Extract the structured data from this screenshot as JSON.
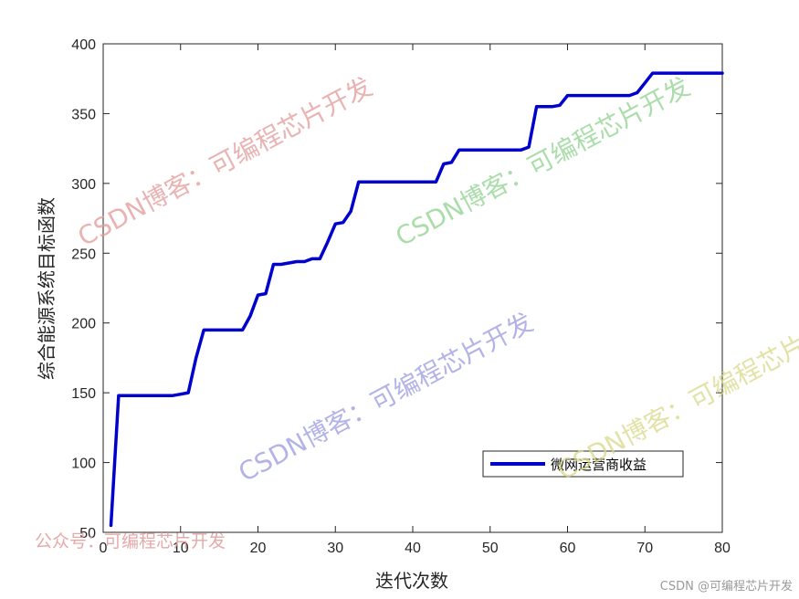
{
  "chart_data": {
    "type": "line",
    "xlabel": "迭代次数",
    "ylabel": "综合能源系统目标函数",
    "xlim": [
      0,
      80
    ],
    "ylim": [
      50,
      400
    ],
    "xticks": [
      "0",
      "10",
      "20",
      "30",
      "40",
      "50",
      "60",
      "70",
      "80"
    ],
    "yticks": [
      "50",
      "100",
      "150",
      "200",
      "250",
      "300",
      "350",
      "400"
    ],
    "legend_position": "lower-right",
    "grid": false,
    "series": [
      {
        "name": "微网运营商收益",
        "color": "#0000cc",
        "x": [
          1,
          2,
          9,
          10,
          11,
          12,
          13,
          18,
          19,
          20,
          21,
          22,
          23,
          25,
          26,
          27,
          28,
          29,
          30,
          31,
          32,
          33,
          43,
          44,
          45,
          46,
          54,
          55,
          56,
          58,
          59,
          60,
          68,
          69,
          70,
          71,
          80
        ],
        "y": [
          55,
          148,
          148,
          149,
          150,
          175,
          195,
          195,
          205,
          220,
          221,
          242,
          242,
          244,
          244,
          246,
          246,
          258,
          271,
          272,
          280,
          301,
          301,
          314,
          315,
          324,
          324,
          326,
          355,
          355,
          356,
          363,
          363,
          365,
          372,
          379,
          379
        ]
      }
    ]
  },
  "watermarks": [
    "CSDN博客：可编程芯片开发",
    "CSDN博客：可编程芯片开发",
    "CSDN博客：可编程芯片开发",
    "CSDN博客：可编程芯片开发",
    "公众号：可编程芯片开发"
  ],
  "footer": "CSDN @可编程芯片开发",
  "colors": {
    "line": "#0000cc",
    "axis": "#262626",
    "watermark_red": "#e29a9a",
    "watermark_green": "#8fd28f",
    "watermark_blue": "#9a9ae0",
    "watermark_yellow": "#d8d88a"
  }
}
